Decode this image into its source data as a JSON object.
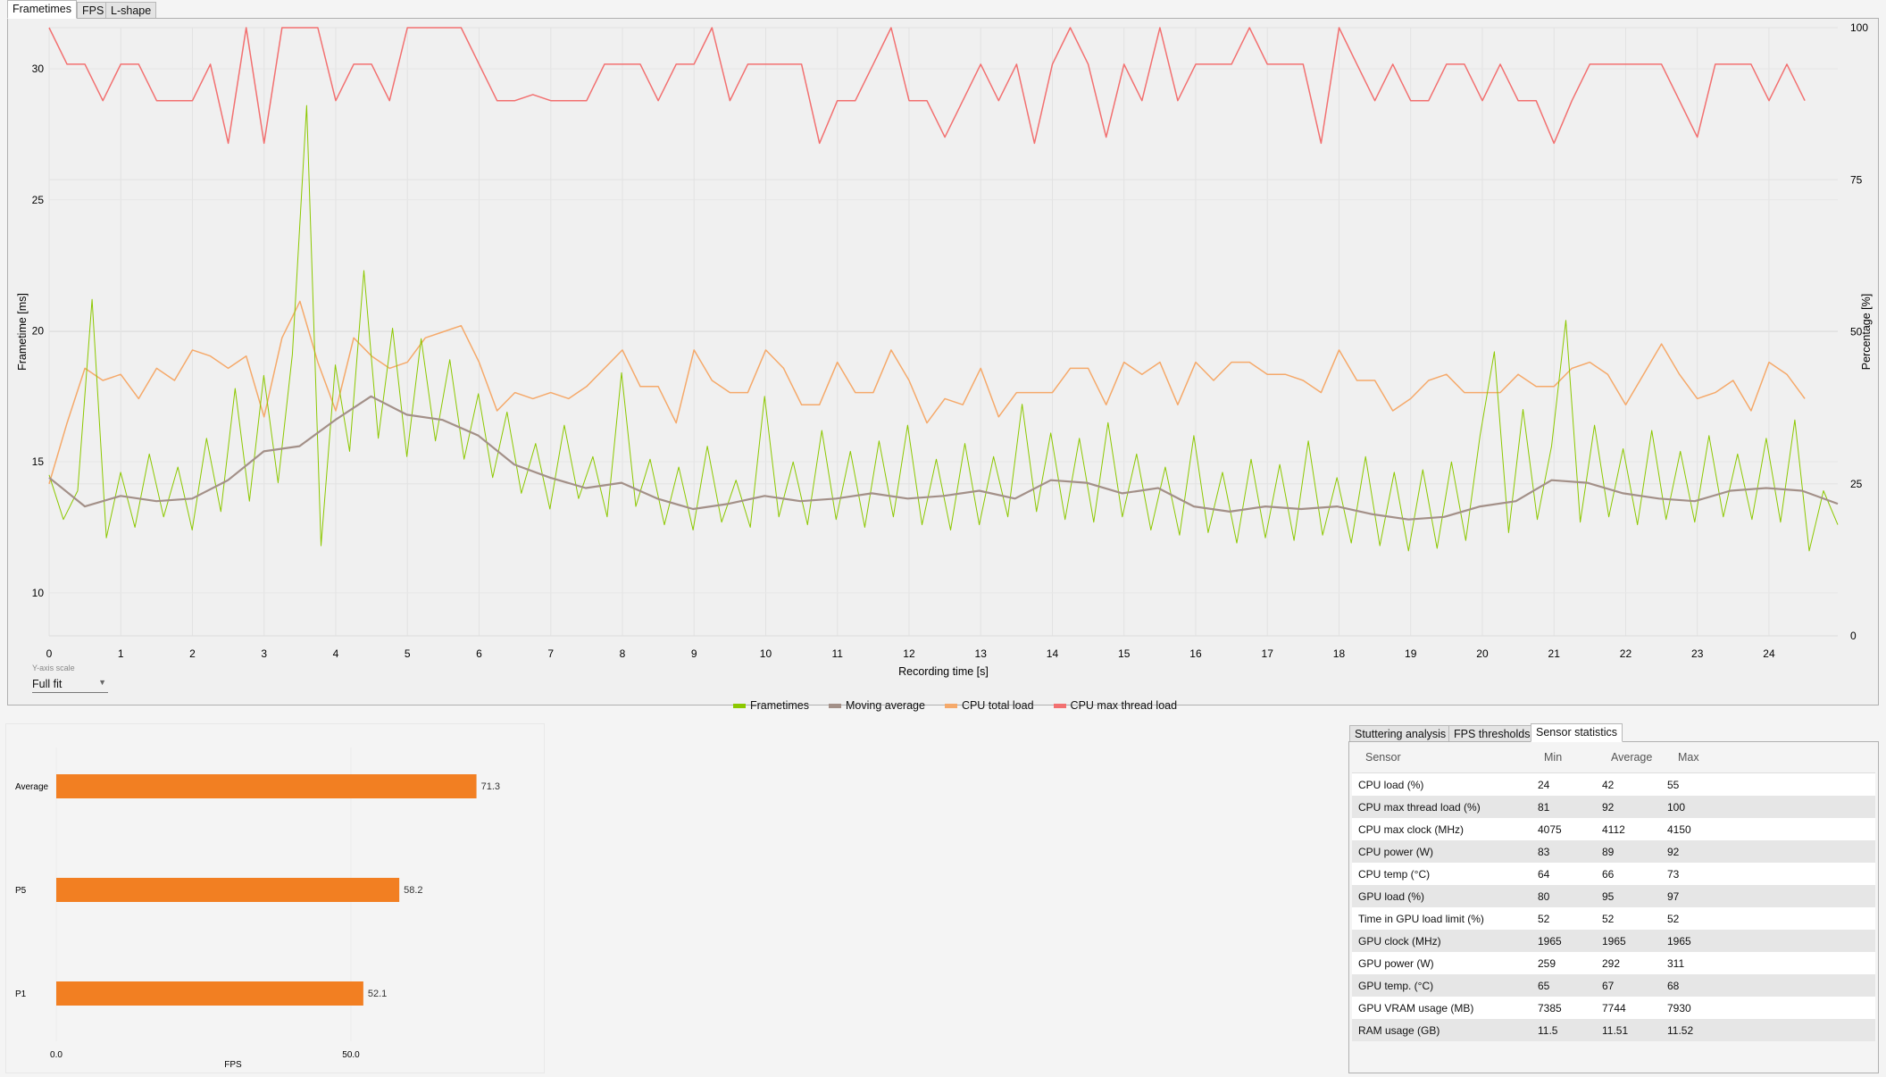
{
  "tabs": {
    "frametimes": "Frametimes",
    "fps": "FPS",
    "lshape": "L-shape"
  },
  "chart_data": [
    {
      "type": "line",
      "title": "",
      "xlabel": "Recording time [s]",
      "ylabel": "Frametime [ms]",
      "y2label": "Percentage [%]",
      "xlim": [
        0,
        24.96
      ],
      "ylim": [
        8.36,
        31.57
      ],
      "y2lim": [
        0,
        100
      ],
      "x_ticks": [
        "0",
        "1",
        "2",
        "3",
        "4",
        "5",
        "6",
        "7",
        "8",
        "9",
        "10",
        "11",
        "12",
        "13",
        "14",
        "15",
        "16",
        "17",
        "18",
        "19",
        "20",
        "21",
        "22",
        "23",
        "24"
      ],
      "y_ticks": [
        "10",
        "15",
        "20",
        "25",
        "30"
      ],
      "y2_ticks": [
        "0",
        "25",
        "50",
        "75",
        "100"
      ],
      "grid": true,
      "legend_position": "bottom-center",
      "colors": {
        "frametimes": "#8cc800",
        "moving_average": "#a39088",
        "cpu_total": "#f5a96a",
        "cpu_max_thread": "#f27070"
      },
      "series": [
        {
          "name": "Frametimes",
          "axis": "left",
          "x_step": 0.2,
          "values": [
            14.5,
            12.8,
            13.9,
            21.2,
            12.1,
            14.6,
            12.5,
            15.3,
            12.9,
            14.8,
            12.4,
            15.9,
            13.1,
            17.8,
            13.5,
            18.3,
            14.2,
            19.1,
            28.6,
            11.8,
            18.7,
            15.4,
            22.3,
            15.9,
            20.1,
            15.2,
            19.7,
            15.8,
            18.9,
            15.1,
            17.6,
            14.4,
            16.9,
            13.8,
            15.7,
            13.2,
            16.4,
            13.6,
            15.2,
            12.9,
            18.4,
            13.3,
            15.1,
            12.6,
            14.8,
            12.4,
            15.6,
            12.7,
            14.3,
            12.5,
            17.5,
            12.9,
            15.0,
            12.6,
            16.2,
            12.8,
            15.4,
            12.5,
            15.8,
            12.9,
            16.4,
            12.6,
            15.1,
            12.4,
            15.7,
            12.6,
            15.2,
            12.9,
            17.2,
            13.1,
            16.1,
            12.8,
            15.9,
            12.7,
            16.5,
            12.9,
            15.3,
            12.4,
            14.8,
            12.2,
            16.0,
            12.3,
            14.6,
            11.9,
            15.1,
            12.1,
            14.9,
            12.0,
            15.8,
            12.2,
            14.4,
            11.9,
            15.2,
            11.8,
            14.6,
            11.6,
            14.7,
            11.7,
            15.0,
            12.0,
            16.0,
            19.2,
            12.3,
            17.0,
            12.8,
            15.6,
            20.4,
            12.7,
            16.4,
            12.9,
            15.5,
            12.6,
            16.2,
            12.8,
            15.4,
            12.7,
            16.0,
            12.9,
            15.3,
            12.8,
            15.9,
            12.7,
            16.6,
            11.6,
            13.9,
            12.6
          ]
        },
        {
          "name": "Moving average",
          "axis": "left",
          "x_step": 0.5,
          "values": [
            14.4,
            13.3,
            13.7,
            13.5,
            13.6,
            14.3,
            15.4,
            15.6,
            16.6,
            17.5,
            16.8,
            16.6,
            16.0,
            14.9,
            14.4,
            14.0,
            14.2,
            13.6,
            13.2,
            13.4,
            13.7,
            13.5,
            13.6,
            13.8,
            13.6,
            13.7,
            13.9,
            13.6,
            14.3,
            14.2,
            13.8,
            14.0,
            13.3,
            13.1,
            13.3,
            13.2,
            13.3,
            13.0,
            12.8,
            12.9,
            13.3,
            13.5,
            14.3,
            14.2,
            13.8,
            13.6,
            13.5,
            13.9,
            14.0,
            13.9,
            13.4
          ]
        },
        {
          "name": "CPU total load",
          "axis": "right",
          "x_step": 0.25,
          "values": [
            25,
            35,
            44,
            42,
            43,
            39,
            44,
            42,
            47,
            46,
            44,
            46,
            36,
            49,
            55,
            45,
            37,
            49,
            46,
            44,
            45,
            49,
            50,
            51,
            45,
            37,
            40,
            39,
            40,
            39,
            41,
            44,
            47,
            41,
            41,
            35,
            47,
            42,
            40,
            40,
            47,
            44,
            38,
            38,
            45,
            40,
            40,
            47,
            42,
            35,
            39,
            38,
            44,
            36,
            40,
            40,
            40,
            44,
            44,
            38,
            45,
            43,
            45,
            38,
            45,
            42,
            45,
            45,
            43,
            43,
            42,
            40,
            47,
            42,
            42,
            37,
            39,
            42,
            43,
            40,
            40,
            40,
            43,
            41,
            41,
            44,
            45,
            43,
            38,
            43,
            48,
            43,
            39,
            40,
            42,
            37,
            45,
            43,
            39
          ]
        },
        {
          "name": "CPU max thread load",
          "axis": "right",
          "x_step": 0.25,
          "values": [
            100,
            94,
            94,
            88,
            94,
            94,
            88,
            88,
            88,
            94,
            81,
            100,
            81,
            100,
            100,
            100,
            88,
            94,
            94,
            88,
            100,
            100,
            100,
            100,
            94,
            88,
            88,
            89,
            88,
            88,
            88,
            94,
            94,
            94,
            88,
            94,
            94,
            100,
            88,
            94,
            94,
            94,
            94,
            81,
            88,
            88,
            94,
            100,
            88,
            88,
            82,
            88,
            94,
            88,
            94,
            81,
            94,
            100,
            94,
            82,
            94,
            88,
            100,
            88,
            94,
            94,
            94,
            100,
            94,
            94,
            94,
            81,
            100,
            94,
            88,
            94,
            88,
            88,
            94,
            94,
            88,
            94,
            88,
            88,
            81,
            88,
            94,
            94,
            94,
            94,
            94,
            88,
            82,
            94,
            94,
            94,
            88,
            94,
            88
          ]
        }
      ]
    },
    {
      "type": "bar",
      "orientation": "horizontal",
      "categories": [
        "Average",
        "P5",
        "P1"
      ],
      "values": [
        71.3,
        58.2,
        52.1
      ],
      "value_labels": [
        "71.3",
        "58.2",
        "52.1"
      ],
      "xlabel": "FPS",
      "x_ticks": [
        "0.0",
        "50.0"
      ],
      "xlim": [
        0,
        83
      ],
      "color": "#f27f22"
    }
  ],
  "y_axis_scale": {
    "label": "Y-axis scale",
    "value": "Full fit"
  },
  "legend": [
    "Frametimes",
    "Moving average",
    "CPU total load",
    "CPU max thread load"
  ],
  "bottom_tabs": {
    "stuttering": "Stuttering analysis",
    "fps_thresholds": "FPS thresholds",
    "sensor_stats": "Sensor statistics"
  },
  "sensor_table": {
    "headers": [
      "Sensor",
      "Min",
      "Average",
      "Max"
    ],
    "rows": [
      [
        "CPU load (%)",
        "24",
        "42",
        "55"
      ],
      [
        "CPU max thread load (%)",
        "81",
        "92",
        "100"
      ],
      [
        "CPU max clock (MHz)",
        "4075",
        "4112",
        "4150"
      ],
      [
        "CPU power (W)",
        "83",
        "89",
        "92"
      ],
      [
        "CPU temp (°C)",
        "64",
        "66",
        "73"
      ],
      [
        "GPU load (%)",
        "80",
        "95",
        "97"
      ],
      [
        "Time in GPU load limit (%)",
        "52",
        "52",
        "52"
      ],
      [
        "GPU clock (MHz)",
        "1965",
        "1965",
        "1965"
      ],
      [
        "GPU power (W)",
        "259",
        "292",
        "311"
      ],
      [
        "GPU temp. (°C)",
        "65",
        "67",
        "68"
      ],
      [
        "GPU VRAM usage (MB)",
        "7385",
        "7744",
        "7930"
      ],
      [
        "RAM usage (GB)",
        "11.5",
        "11.51",
        "11.52"
      ]
    ]
  }
}
